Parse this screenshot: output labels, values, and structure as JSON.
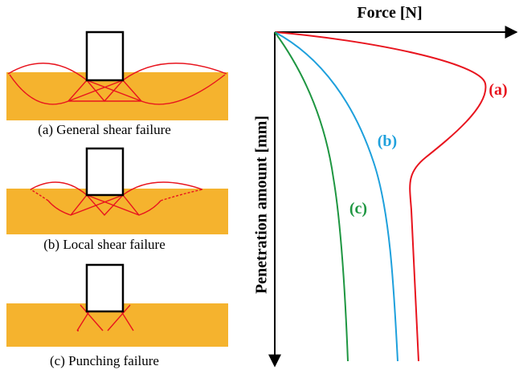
{
  "panels": [
    {
      "caption": "(a) General shear failure"
    },
    {
      "caption": "(b) Local shear failure"
    },
    {
      "caption": "(c) Punching failure"
    }
  ],
  "graph": {
    "x_axis_label": "Force [N]",
    "y_axis_label": "Penetration amount [mm]",
    "curves": [
      {
        "label": "(a)",
        "color": "#e8141e"
      },
      {
        "label": "(b)",
        "color": "#1ea0dc"
      },
      {
        "label": "(c)",
        "color": "#1e9641"
      }
    ]
  }
}
